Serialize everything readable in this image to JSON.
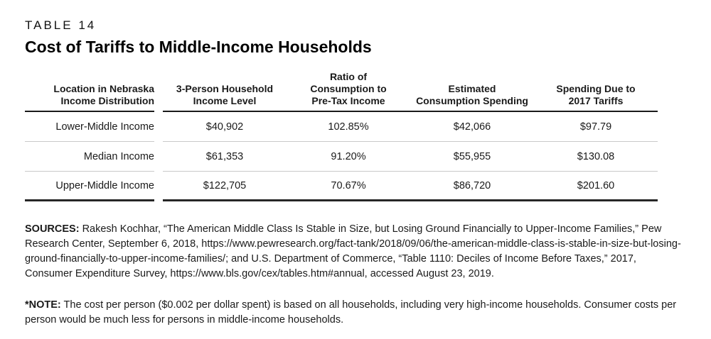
{
  "header": {
    "table_label": "TABLE 14",
    "title": "Cost of Tariffs to Middle-Income Households"
  },
  "table": {
    "columns": [
      {
        "lines": [
          "Location in Nebraska",
          "Income Distribution"
        ]
      },
      {
        "lines": [
          "3-Person Household",
          "Income Level"
        ]
      },
      {
        "lines": [
          "Ratio of",
          "Consumption to",
          "Pre-Tax Income"
        ]
      },
      {
        "lines": [
          "Estimated",
          "Consumption Spending"
        ]
      },
      {
        "lines": [
          "Spending Due to",
          "2017 Tariffs"
        ]
      }
    ],
    "rows": [
      {
        "location": "Lower-Middle Income",
        "income": "$40,902",
        "ratio": "102.85%",
        "spending": "$42,066",
        "tariff_cost": "$97.79"
      },
      {
        "location": "Median Income",
        "income": "$61,353",
        "ratio": "91.20%",
        "spending": "$55,955",
        "tariff_cost": "$130.08"
      },
      {
        "location": "Upper-Middle Income",
        "income": "$122,705",
        "ratio": "70.67%",
        "spending": "$86,720",
        "tariff_cost": "$201.60"
      }
    ]
  },
  "sources": {
    "label": "SOURCES:",
    "text": " Rakesh Kochhar, “The American Middle Class Is Stable in Size, but Losing Ground Financially to Upper-Income Families,” Pew Research Center, September 6, 2018, https://www.pewresearch.org/fact-tank/2018/09/06/the-american-middle-class-is-stable-in-size-but-losing-ground-financially-to-upper-income-families/; and U.S. Department of Commerce, “Table 1110: Deciles of Income Before Taxes,” 2017, Consumer Expenditure Survey, https://www.bls.gov/cex/tables.htm#annual, accessed August 23, 2019."
  },
  "note": {
    "label": "*NOTE:",
    "text": " The cost per person ($0.002 per dollar spent) is based on all households, including very high-income households. Consumer costs per person would be much less for persons in middle-income households."
  },
  "colors": {
    "background": "#ffffff",
    "text": "#1a1a1a",
    "rule_dark": "#1a1a1a",
    "rule_light": "#c9c9c9"
  }
}
